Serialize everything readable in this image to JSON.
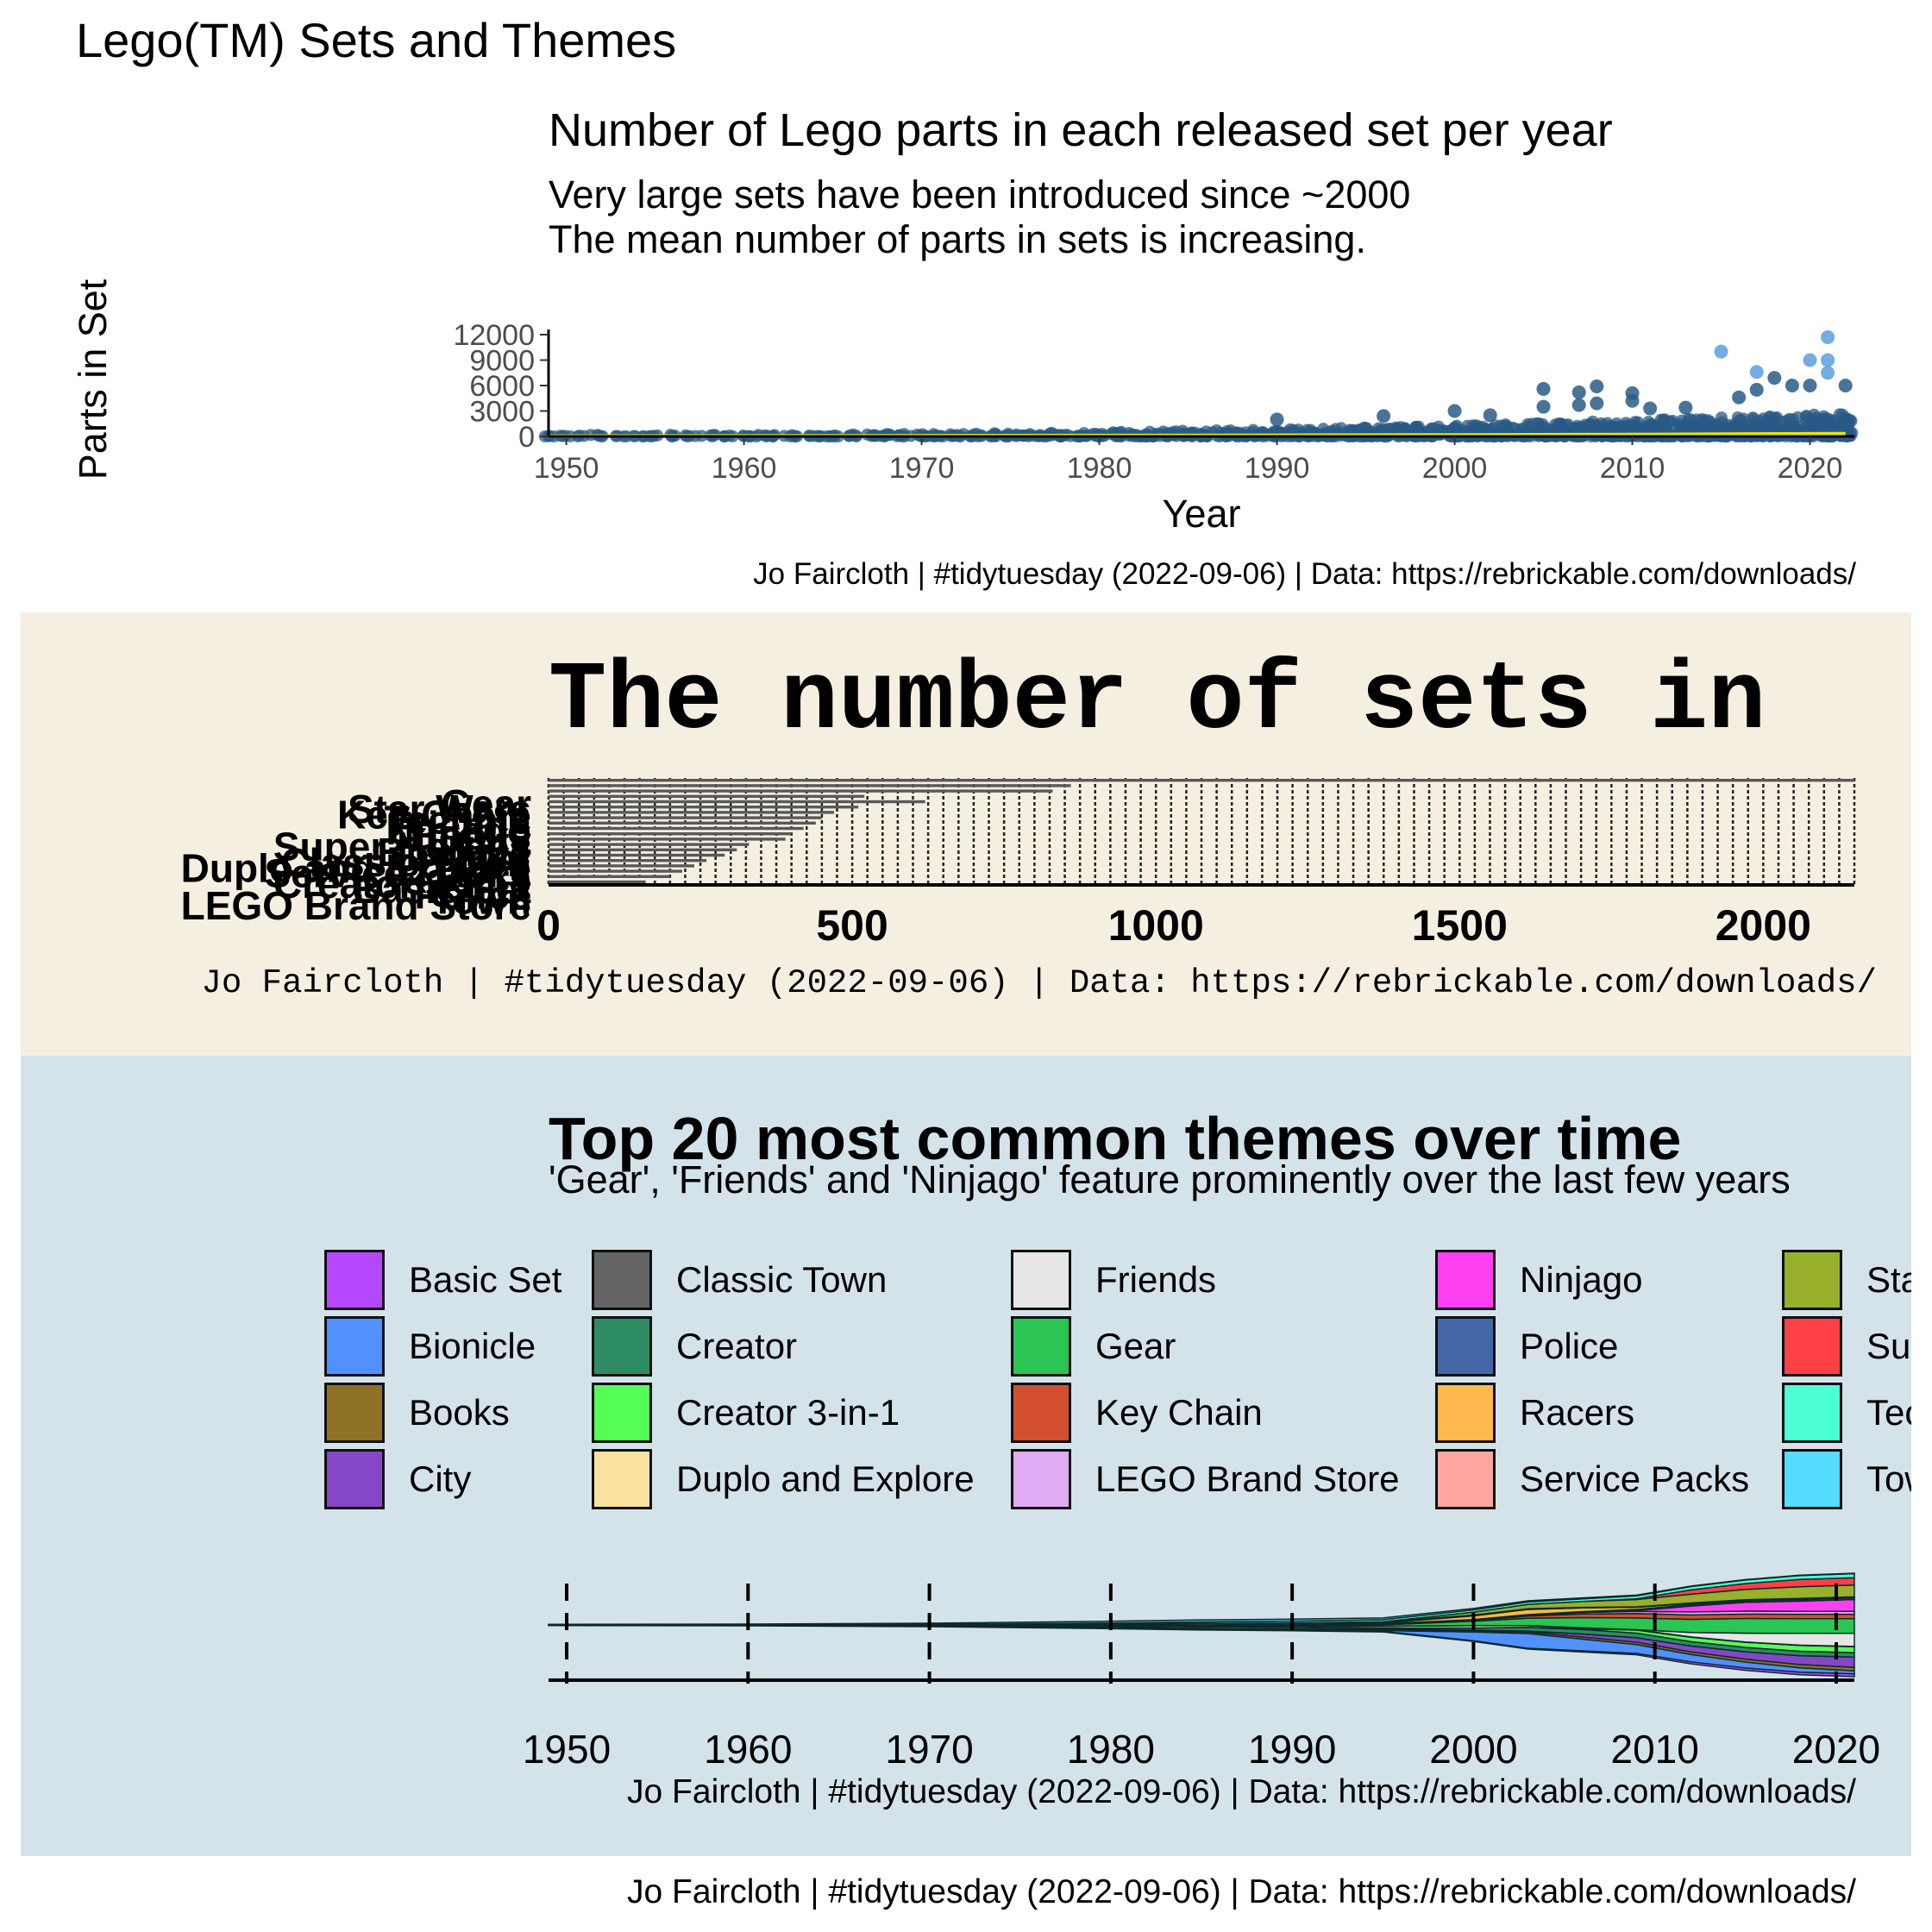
{
  "page": {
    "title": "Lego(TM) Sets and Themes",
    "caption": "Jo Faircloth | #tidytuesday (2022-09-06) | Data: https://rebrickable.com/downloads/"
  },
  "colors": {
    "panel2_bg": "#f5efe2",
    "panel3_bg": "#d4e3ea",
    "scatter_point": "#2a5a86",
    "scatter_point_high": "#5b9fdc",
    "mean_line": "#e6e600",
    "bar_fill": "#595959"
  },
  "chart_data": [
    {
      "type": "scatter",
      "title": "Number of Lego parts in each released set per year",
      "subtitle_line1": "Very large sets have been introduced since ~2000",
      "subtitle_line2": "The mean number of parts in sets is increasing.",
      "xlabel": "Year",
      "ylabel": "Parts in Set",
      "caption": "Jo Faircloth | #tidytuesday (2022-09-06) | Data: https://rebrickable.com/downloads/",
      "xlim": [
        1949,
        2022.5
      ],
      "ylim": [
        0,
        12000
      ],
      "x_ticks": [
        1950,
        1960,
        1970,
        1980,
        1990,
        2000,
        2010,
        2020
      ],
      "y_ticks": [
        0,
        3000,
        6000,
        9000,
        12000
      ],
      "highlight_points": [
        {
          "x": 1990,
          "y": 2000
        },
        {
          "x": 1996,
          "y": 2400
        },
        {
          "x": 2000,
          "y": 3000
        },
        {
          "x": 2002,
          "y": 2500
        },
        {
          "x": 2005,
          "y": 5600
        },
        {
          "x": 2005,
          "y": 3500
        },
        {
          "x": 2007,
          "y": 5200
        },
        {
          "x": 2007,
          "y": 3700
        },
        {
          "x": 2008,
          "y": 5900
        },
        {
          "x": 2008,
          "y": 3900
        },
        {
          "x": 2010,
          "y": 5100
        },
        {
          "x": 2010,
          "y": 4200
        },
        {
          "x": 2011,
          "y": 3300
        },
        {
          "x": 2013,
          "y": 3400
        },
        {
          "x": 2015,
          "y": 10000
        },
        {
          "x": 2016,
          "y": 4600
        },
        {
          "x": 2017,
          "y": 7600
        },
        {
          "x": 2017,
          "y": 5500
        },
        {
          "x": 2018,
          "y": 6900
        },
        {
          "x": 2019,
          "y": 6000
        },
        {
          "x": 2020,
          "y": 9000
        },
        {
          "x": 2020,
          "y": 6000
        },
        {
          "x": 2021,
          "y": 11700
        },
        {
          "x": 2021,
          "y": 9000
        },
        {
          "x": 2021,
          "y": 7500
        },
        {
          "x": 2022,
          "y": 6000
        }
      ],
      "mean_line": {
        "x": [
          1949,
          1960,
          1970,
          1980,
          1990,
          2000,
          2010,
          2022
        ],
        "y": [
          40,
          60,
          90,
          110,
          140,
          180,
          230,
          330
        ]
      }
    },
    {
      "type": "bar",
      "title": "The number of sets in",
      "caption": "Jo Faircloth | #tidytuesday (2022-09-06) | Data: https://rebrickable.com/downloads/",
      "orientation": "horizontal",
      "xlim": [
        0,
        2150
      ],
      "x_ticks": [
        0,
        500,
        1000,
        1500,
        2000
      ],
      "grid": true,
      "categories": [
        "Gear",
        "Star Wars",
        "Key Chain",
        "Technic",
        "Friends",
        "Ninjago",
        "Books",
        "City",
        "Super Heroes",
        "Bionicle",
        "Creator",
        "Classic Town",
        "Duplo and Explore",
        "Service Packs",
        "Racers",
        "Creator 3-in-1",
        "Basic Set",
        "Police",
        "Town",
        "LEGO Brand Store"
      ],
      "values": [
        2150,
        860,
        830,
        520,
        620,
        510,
        470,
        450,
        440,
        420,
        400,
        390,
        330,
        310,
        290,
        260,
        240,
        220,
        200,
        160
      ]
    },
    {
      "type": "area",
      "title": "Top 20 most common themes over time",
      "subtitle": "'Gear', 'Friends' and 'Ninjago' feature prominently over the last few years",
      "caption": "Jo Faircloth | #tidytuesday (2022-09-06) | Data: https://rebrickable.com/downloads/",
      "x_ticks": [
        1950,
        1960,
        1970,
        1980,
        1990,
        2000,
        2010,
        2020
      ],
      "xlim": [
        1949,
        2021
      ],
      "x": [
        1949,
        1960,
        1970,
        1980,
        1985,
        1990,
        1995,
        2000,
        2003,
        2006,
        2009,
        2012,
        2015,
        2018,
        2021
      ],
      "series": [
        {
          "name": "Basic Set",
          "color": "#b447ff",
          "values": [
            0.4,
            0.5,
            0.6,
            0.8,
            0.7,
            0.6,
            0.5,
            0.5,
            0.6,
            0.8,
            1.0,
            1.4,
            1.6,
            1.8,
            2.0
          ]
        },
        {
          "name": "Bionicle",
          "color": "#5190ff",
          "values": [
            0,
            0,
            0,
            0,
            0,
            0.1,
            0.5,
            6,
            10,
            8,
            6,
            5,
            4,
            3,
            2
          ]
        },
        {
          "name": "Books",
          "color": "#8f7226",
          "values": [
            0.2,
            0.2,
            0.2,
            0.3,
            0.4,
            0.5,
            0.6,
            0.8,
            1.0,
            1.4,
            1.6,
            1.8,
            2.0,
            2.2,
            2.4
          ]
        },
        {
          "name": "City",
          "color": "#8647c7",
          "values": [
            0,
            0,
            0,
            0,
            0,
            0,
            0,
            0,
            0.5,
            2,
            3,
            4,
            5,
            6,
            7
          ]
        },
        {
          "name": "Classic Town",
          "color": "#646464",
          "values": [
            0,
            0,
            0.2,
            0.8,
            1.2,
            1.2,
            0.8,
            0.4,
            0.2,
            0.1,
            0,
            0,
            0,
            0,
            0
          ]
        },
        {
          "name": "Creator",
          "color": "#2d8c62",
          "values": [
            0,
            0,
            0,
            0,
            0,
            0,
            0.3,
            1.5,
            2.5,
            3,
            3.2,
            3,
            3,
            3,
            3
          ]
        },
        {
          "name": "Creator 3-in-1",
          "color": "#55ff55",
          "values": [
            0,
            0,
            0,
            0,
            0,
            0,
            0,
            0,
            0,
            0.5,
            2,
            3,
            3.5,
            4,
            4
          ]
        },
        {
          "name": "Duplo and Explore",
          "color": "#f8e29e",
          "values": [
            0,
            0,
            0,
            0.2,
            0.5,
            0.8,
            1.2,
            1.6,
            1.2,
            0.6,
            0.3,
            0.2,
            0.2,
            0.2,
            0.2
          ]
        },
        {
          "name": "Friends",
          "color": "#e6e6e6",
          "values": [
            0,
            0,
            0,
            0,
            0,
            0,
            0,
            0,
            0,
            0,
            0,
            3,
            6,
            8,
            9
          ]
        },
        {
          "name": "Gear",
          "color": "#2bc553",
          "values": [
            0,
            0,
            0,
            0,
            0.1,
            0.3,
            1,
            3,
            5,
            7,
            8,
            9,
            10,
            10,
            10
          ]
        },
        {
          "name": "Key Chain",
          "color": "#d44f30",
          "values": [
            0,
            0,
            0,
            0,
            0,
            0,
            0,
            0.5,
            1.5,
            2.5,
            3,
            3,
            3,
            3,
            3
          ]
        },
        {
          "name": "LEGO Brand Store",
          "color": "#e0aaf5",
          "values": [
            0,
            0,
            0,
            0,
            0,
            0,
            0,
            0,
            0.5,
            1,
            1.5,
            2,
            2,
            2,
            2
          ]
        },
        {
          "name": "Ninjago",
          "color": "#ff40f2",
          "values": [
            0,
            0,
            0,
            0,
            0,
            0,
            0,
            0,
            0,
            0,
            0.5,
            4,
            6,
            7,
            8
          ]
        },
        {
          "name": "Police",
          "color": "#4467a8",
          "values": [
            0,
            0,
            0.1,
            0.4,
            0.6,
            0.8,
            0.8,
            0.6,
            0.5,
            0.6,
            0.8,
            1,
            1,
            1,
            1
          ]
        },
        {
          "name": "Racers",
          "color": "#ffb84c",
          "values": [
            0,
            0,
            0,
            0,
            0,
            0,
            0.5,
            2.5,
            3.5,
            2.5,
            1.5,
            0.8,
            0.5,
            0.5,
            0.5
          ]
        },
        {
          "name": "Service Packs",
          "color": "#ffa6a1",
          "values": [
            0,
            0,
            0.3,
            0.8,
            1,
            1,
            0.8,
            0.6,
            0.5,
            0.4,
            0.3,
            0.3,
            0.3,
            0.3,
            0.3
          ]
        },
        {
          "name": "Star Wars",
          "color": "#98b02c",
          "values": [
            0,
            0,
            0,
            0,
            0,
            0,
            0,
            2,
            3,
            4,
            5,
            6,
            7,
            8,
            8
          ]
        },
        {
          "name": "Super Heroes",
          "color": "#ff3f46",
          "values": [
            0,
            0,
            0,
            0,
            0,
            0,
            0,
            0,
            0,
            0,
            0.5,
            3,
            4,
            5,
            5
          ]
        },
        {
          "name": "Technic",
          "color": "#4dffd4",
          "values": [
            0,
            0,
            0.2,
            0.6,
            1,
            1.2,
            1.4,
            1.5,
            1.6,
            1.8,
            2,
            2.2,
            2.4,
            2.6,
            2.8
          ]
        },
        {
          "name": "Town",
          "color": "#55dcff",
          "values": [
            0.3,
            0.5,
            0.8,
            1.2,
            1.4,
            1.4,
            1.2,
            1,
            0.8,
            0.6,
            0.5,
            0.4,
            0.3,
            0.3,
            0.3
          ]
        }
      ]
    }
  ]
}
